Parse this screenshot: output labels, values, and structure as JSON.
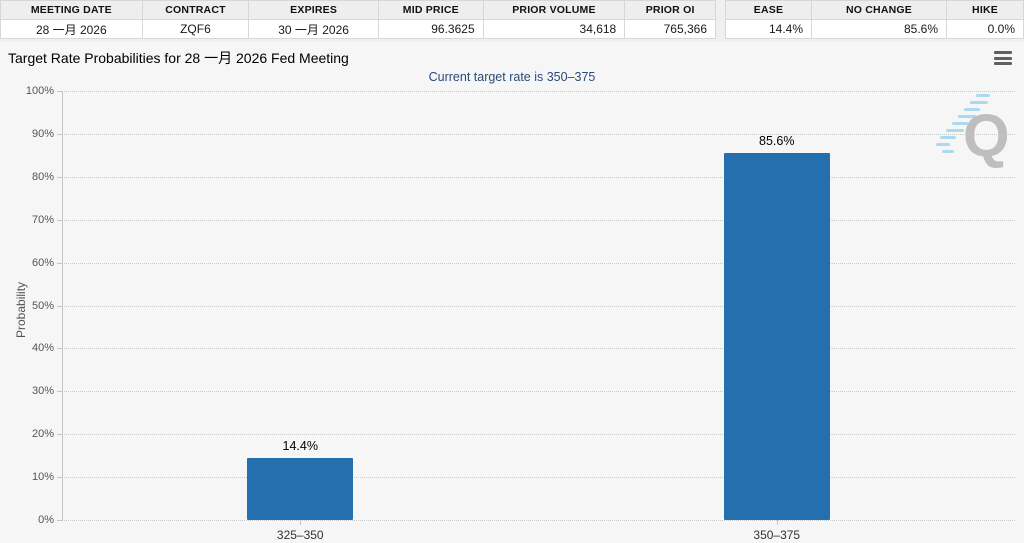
{
  "contract_table": {
    "headers": [
      "MEETING DATE",
      "CONTRACT",
      "EXPIRES",
      "MID PRICE",
      "PRIOR VOLUME",
      "PRIOR OI"
    ],
    "values": [
      "28 一月 2026",
      "ZQF6",
      "30 一月 2026",
      "96.3625",
      "34,618",
      "765,366"
    ]
  },
  "probability_table": {
    "headers": [
      "EASE",
      "NO CHANGE",
      "HIKE"
    ],
    "values": [
      "14.4%",
      "85.6%",
      "0.0%"
    ]
  },
  "chart_data": {
    "type": "bar",
    "title": "Target Rate Probabilities for 28 一月 2026 Fed Meeting",
    "subtitle": "Current target rate is 350–375",
    "categories": [
      "325–350",
      "350–375"
    ],
    "values": [
      14.4,
      85.6
    ],
    "value_labels": [
      "14.4%",
      "85.6%"
    ],
    "xlabel": "",
    "ylabel": "Probability",
    "ylim": [
      0,
      100
    ],
    "ytick_step": 10,
    "ytick_suffix": "%",
    "grid": "dotted-horizontal",
    "legend": "none",
    "bar_color": "#2470af"
  },
  "watermark": {
    "letter": "Q"
  },
  "colors": {
    "bar": "#2470af",
    "subtitle": "#2b4a7a",
    "table_header_bg": "#eeeeee",
    "panel_bg": "#f6f6f7",
    "watermark_letter": "#b5b5b5",
    "watermark_stripes": "#9fd4ee"
  }
}
